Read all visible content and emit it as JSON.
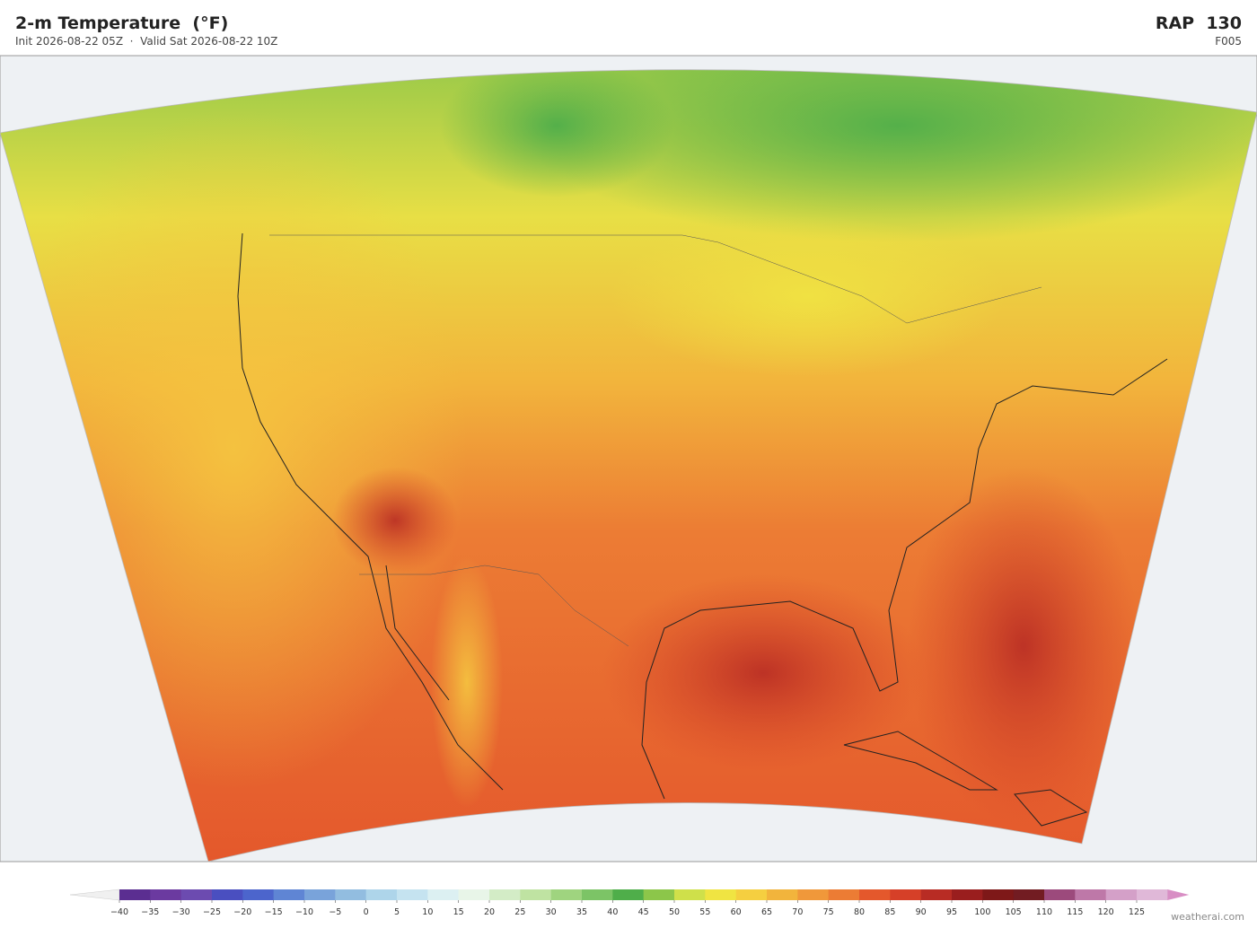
{
  "header": {
    "title": "2-m Temperature  (°F)",
    "subtitle": "Init 2026-08-22 05Z  ·  Valid Sat 2026-08-22 10Z",
    "model": "RAP  130",
    "forecast_hour": "F005"
  },
  "colorbar": {
    "ticks": [
      {
        "value": -40,
        "label": "−40"
      },
      {
        "value": -35,
        "label": "−35"
      },
      {
        "value": -30,
        "label": "−30"
      },
      {
        "value": -25,
        "label": "−25"
      },
      {
        "value": -20,
        "label": "−20"
      },
      {
        "value": -15,
        "label": "−15"
      },
      {
        "value": -10,
        "label": "−10"
      },
      {
        "value": -5,
        "label": "−5"
      },
      0,
      5,
      10,
      15,
      20,
      25,
      30,
      35,
      40,
      45,
      50,
      55,
      60,
      65,
      70,
      75,
      80,
      85,
      90,
      95,
      100,
      105,
      110,
      115,
      120,
      125
    ],
    "colors": [
      "#5b2e91",
      "#6b3aa0",
      "#6c4bb0",
      "#4a4fc0",
      "#4c65cc",
      "#5f85d4",
      "#79a3da",
      "#92bde0",
      "#aed5ea",
      "#c5e3f0",
      "#dcf0f2",
      "#e8f5e8",
      "#d3ecc6",
      "#bfe3a2",
      "#9fd47f",
      "#7cc466",
      "#4fae4a",
      "#8cc64a",
      "#cfe04a",
      "#f0e442",
      "#f5cf40",
      "#f2b43c",
      "#f0983a",
      "#ec7c34",
      "#e4582c",
      "#d64028",
      "#b82c24",
      "#9a1e1e",
      "#7e1818",
      "#721c22",
      "#9c4a7c",
      "#be78a8",
      "#d4a0c8",
      "#e0b8d8"
    ]
  },
  "footer": {
    "watermark": "weatherai.com"
  }
}
